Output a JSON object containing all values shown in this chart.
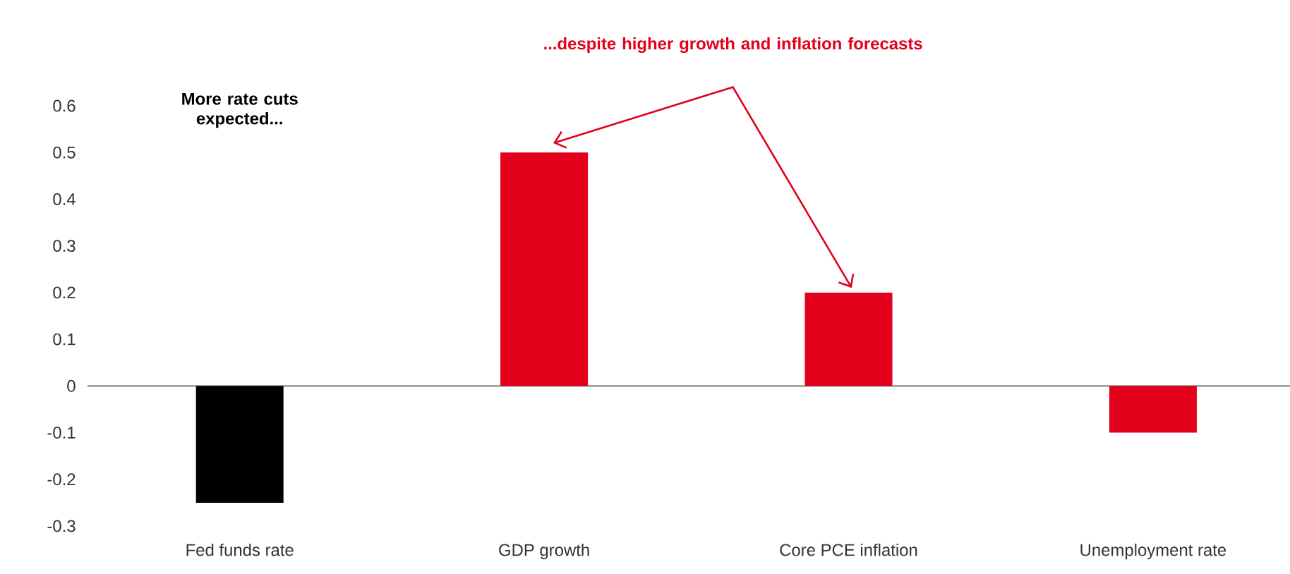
{
  "chart_data": {
    "type": "bar",
    "categories": [
      "Fed funds rate",
      "GDP growth",
      "Core PCE inflation",
      "Unemployment rate"
    ],
    "values": [
      -0.25,
      0.5,
      0.2,
      -0.1
    ],
    "colors": [
      "#000000",
      "#e2001a",
      "#e2001a",
      "#e2001a"
    ],
    "ylim": [
      -0.3,
      0.6
    ],
    "yticks": [
      -0.3,
      -0.2,
      -0.1,
      0,
      0.1,
      0.2,
      0.3,
      0.4,
      0.5,
      0.6
    ],
    "annotations": [
      "More rate cuts expected...",
      "...despite higher growth and inflation forecasts"
    ]
  }
}
